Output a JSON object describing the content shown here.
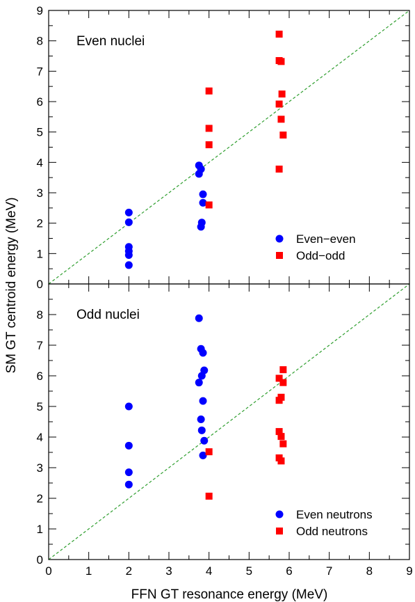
{
  "figure": {
    "ylabel": "SM GT centroid energy (MeV)",
    "xlabel": "FFN GT resonance energy (MeV)"
  },
  "chart_data": [
    {
      "type": "scatter",
      "panel": "top",
      "title": "Even nuclei",
      "xlim": [
        0,
        9
      ],
      "ylim": [
        0,
        9
      ],
      "xticks": [
        "0",
        "1",
        "2",
        "3",
        "4",
        "5",
        "6",
        "7",
        "8",
        "9"
      ],
      "yticks": [
        "0",
        "1",
        "2",
        "3",
        "4",
        "5",
        "6",
        "7",
        "8",
        "9"
      ],
      "grid": false,
      "legend_position": "bottom-right",
      "diagonal": {
        "style": "dashed",
        "color": "#2e9e2e"
      },
      "series": [
        {
          "name": "Even−even",
          "marker": "circle",
          "color": "#0000ff",
          "points": [
            [
              2.0,
              2.35
            ],
            [
              2.0,
              2.03
            ],
            [
              2.0,
              1.22
            ],
            [
              2.0,
              1.08
            ],
            [
              2.0,
              0.95
            ],
            [
              2.0,
              0.62
            ],
            [
              3.75,
              3.9
            ],
            [
              3.75,
              3.62
            ],
            [
              3.8,
              3.78
            ],
            [
              3.85,
              2.95
            ],
            [
              3.85,
              2.67
            ],
            [
              3.82,
              2.02
            ],
            [
              3.8,
              1.88
            ]
          ]
        },
        {
          "name": "Odd−odd",
          "marker": "square",
          "color": "#ff0000",
          "points": [
            [
              4.0,
              6.35
            ],
            [
              4.0,
              5.12
            ],
            [
              4.0,
              4.58
            ],
            [
              4.0,
              2.6
            ],
            [
              5.75,
              8.22
            ],
            [
              5.75,
              7.35
            ],
            [
              5.8,
              7.32
            ],
            [
              5.82,
              6.25
            ],
            [
              5.75,
              5.92
            ],
            [
              5.8,
              5.42
            ],
            [
              5.85,
              4.9
            ],
            [
              5.75,
              3.78
            ]
          ]
        }
      ]
    },
    {
      "type": "scatter",
      "panel": "bottom",
      "title": "Odd nuclei",
      "xlim": [
        0,
        9
      ],
      "ylim": [
        0,
        9
      ],
      "xticks": [
        "0",
        "1",
        "2",
        "3",
        "4",
        "5",
        "6",
        "7",
        "8",
        "9"
      ],
      "yticks": [
        "0",
        "1",
        "2",
        "3",
        "4",
        "5",
        "6",
        "7",
        "8"
      ],
      "grid": false,
      "legend_position": "bottom-right",
      "diagonal": {
        "style": "dashed",
        "color": "#2e9e2e"
      },
      "series": [
        {
          "name": "Even neutrons",
          "marker": "circle",
          "color": "#0000ff",
          "points": [
            [
              2.0,
              5.0
            ],
            [
              2.0,
              3.72
            ],
            [
              2.0,
              2.85
            ],
            [
              2.0,
              2.45
            ],
            [
              3.75,
              7.88
            ],
            [
              3.8,
              6.88
            ],
            [
              3.85,
              6.75
            ],
            [
              3.88,
              6.18
            ],
            [
              3.82,
              6.0
            ],
            [
              3.75,
              5.78
            ],
            [
              3.85,
              5.18
            ],
            [
              3.8,
              4.58
            ],
            [
              3.82,
              4.22
            ],
            [
              3.88,
              3.88
            ],
            [
              3.85,
              3.4
            ]
          ]
        },
        {
          "name": "Odd neutrons",
          "marker": "square",
          "color": "#ff0000",
          "points": [
            [
              4.0,
              3.52
            ],
            [
              4.0,
              2.07
            ],
            [
              5.85,
              6.2
            ],
            [
              5.75,
              5.92
            ],
            [
              5.85,
              5.78
            ],
            [
              5.8,
              5.3
            ],
            [
              5.75,
              5.2
            ],
            [
              5.75,
              4.18
            ],
            [
              5.8,
              4.02
            ],
            [
              5.85,
              3.78
            ],
            [
              5.75,
              3.32
            ],
            [
              5.8,
              3.22
            ]
          ]
        }
      ]
    }
  ]
}
